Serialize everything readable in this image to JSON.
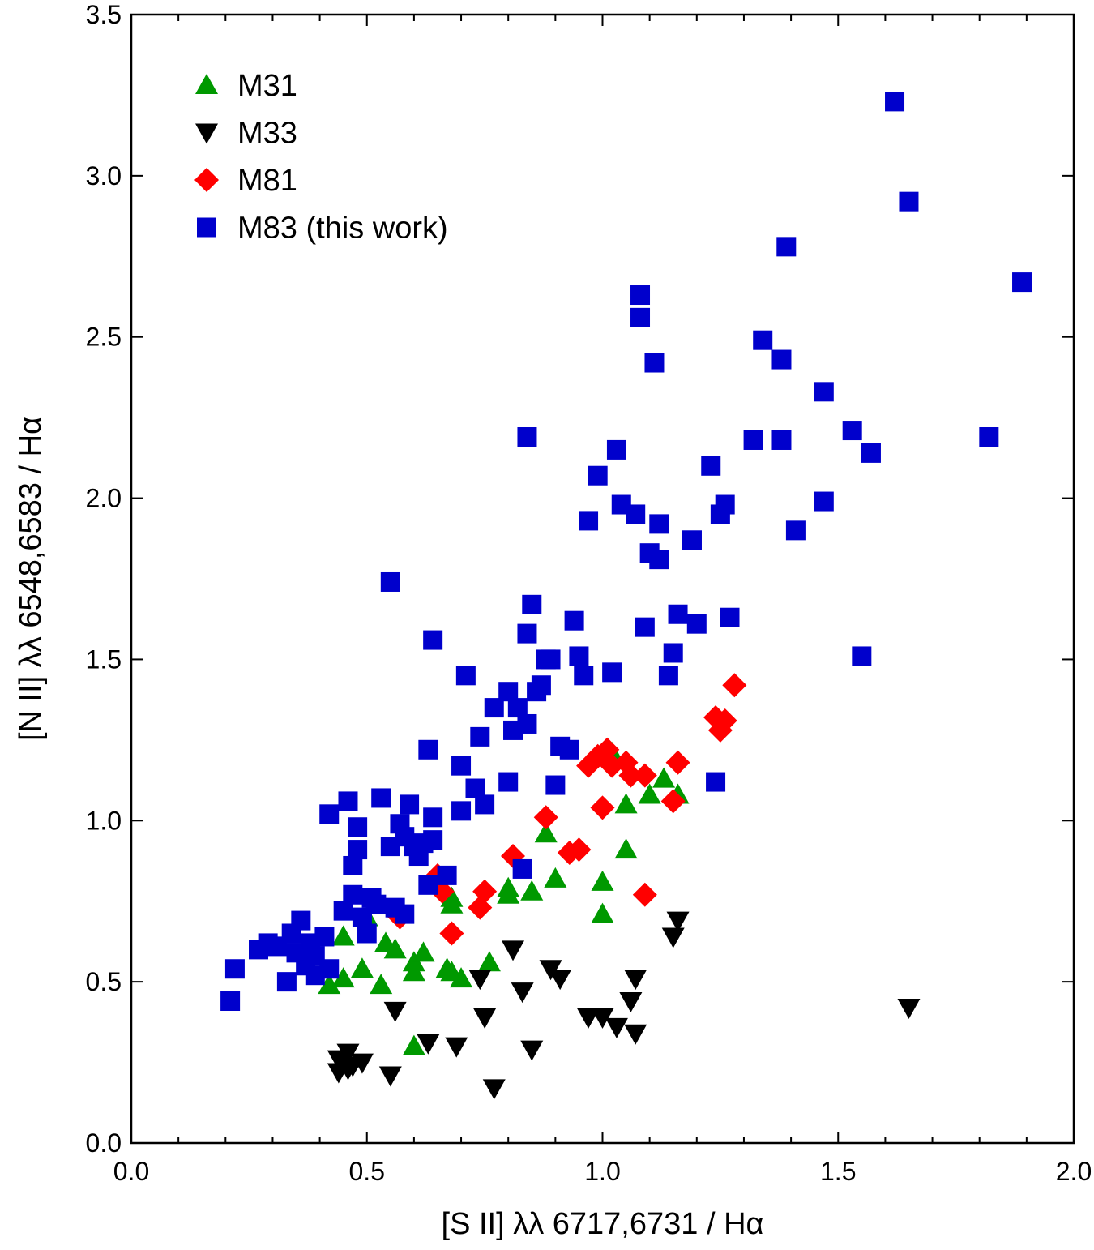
{
  "chart_data": {
    "type": "scatter",
    "title": "",
    "xlabel": "[S II] λλ 6717,6731 / Hα",
    "ylabel": "[N II] λλ 6548,6583 / Hα",
    "xlim": [
      0.0,
      2.0
    ],
    "ylim": [
      0.0,
      3.5
    ],
    "xticks": [
      0.0,
      0.5,
      1.0,
      1.5,
      2.0
    ],
    "yticks": [
      0.0,
      0.5,
      1.0,
      1.5,
      2.0,
      2.5,
      3.0,
      3.5
    ],
    "xtick_labels": [
      "0.0",
      "0.5",
      "1.0",
      "1.5",
      "2.0"
    ],
    "ytick_labels": [
      "0.0",
      "0.5",
      "1.0",
      "1.5",
      "2.0",
      "2.5",
      "3.0",
      "3.5"
    ],
    "grid": false,
    "legend_position": "top-left",
    "series": [
      {
        "name": "M31",
        "marker": "triangle-up",
        "color": "#009900",
        "points": [
          [
            0.42,
            0.49
          ],
          [
            0.45,
            0.51
          ],
          [
            0.45,
            0.64
          ],
          [
            0.49,
            0.54
          ],
          [
            0.5,
            0.7
          ],
          [
            0.53,
            0.49
          ],
          [
            0.54,
            0.62
          ],
          [
            0.56,
            0.6
          ],
          [
            0.6,
            0.3
          ],
          [
            0.6,
            0.53
          ],
          [
            0.6,
            0.56
          ],
          [
            0.62,
            0.59
          ],
          [
            0.67,
            0.54
          ],
          [
            0.68,
            0.74
          ],
          [
            0.68,
            0.76
          ],
          [
            0.68,
            0.53
          ],
          [
            0.7,
            0.51
          ],
          [
            0.76,
            0.56
          ],
          [
            0.8,
            0.77
          ],
          [
            0.8,
            0.79
          ],
          [
            0.85,
            0.78
          ],
          [
            0.88,
            0.96
          ],
          [
            0.9,
            0.82
          ],
          [
            1.0,
            0.81
          ],
          [
            1.0,
            0.71
          ],
          [
            1.02,
            1.21
          ],
          [
            1.05,
            0.91
          ],
          [
            1.05,
            1.05
          ],
          [
            1.1,
            1.08
          ],
          [
            1.13,
            1.13
          ],
          [
            1.16,
            1.08
          ]
        ]
      },
      {
        "name": "M33",
        "marker": "triangle-down",
        "color": "#000000",
        "points": [
          [
            0.44,
            0.26
          ],
          [
            0.44,
            0.22
          ],
          [
            0.46,
            0.28
          ],
          [
            0.46,
            0.23
          ],
          [
            0.47,
            0.24
          ],
          [
            0.49,
            0.25
          ],
          [
            0.55,
            0.21
          ],
          [
            0.56,
            0.41
          ],
          [
            0.63,
            0.31
          ],
          [
            0.69,
            0.3
          ],
          [
            0.74,
            0.51
          ],
          [
            0.75,
            0.39
          ],
          [
            0.77,
            0.17
          ],
          [
            0.81,
            0.6
          ],
          [
            0.83,
            0.47
          ],
          [
            0.85,
            0.29
          ],
          [
            0.89,
            0.54
          ],
          [
            0.91,
            0.51
          ],
          [
            0.97,
            0.39
          ],
          [
            1.0,
            0.39
          ],
          [
            1.03,
            0.36
          ],
          [
            1.06,
            0.44
          ],
          [
            1.07,
            0.34
          ],
          [
            1.07,
            0.51
          ],
          [
            1.15,
            0.64
          ],
          [
            1.16,
            0.69
          ],
          [
            1.65,
            0.42
          ]
        ]
      },
      {
        "name": "M81",
        "marker": "diamond",
        "color": "#ff0000",
        "points": [
          [
            0.57,
            0.7
          ],
          [
            0.65,
            0.83
          ],
          [
            0.66,
            0.78
          ],
          [
            0.68,
            0.65
          ],
          [
            0.74,
            0.73
          ],
          [
            0.75,
            0.78
          ],
          [
            0.81,
            0.89
          ],
          [
            0.88,
            1.01
          ],
          [
            0.93,
            0.9
          ],
          [
            0.95,
            0.91
          ],
          [
            0.97,
            1.17
          ],
          [
            0.99,
            1.2
          ],
          [
            1.0,
            1.04
          ],
          [
            1.01,
            1.22
          ],
          [
            1.02,
            1.17
          ],
          [
            1.05,
            1.18
          ],
          [
            1.06,
            1.14
          ],
          [
            1.09,
            1.14
          ],
          [
            1.09,
            0.77
          ],
          [
            1.15,
            1.06
          ],
          [
            1.16,
            1.18
          ],
          [
            1.24,
            1.32
          ],
          [
            1.25,
            1.28
          ],
          [
            1.26,
            1.31
          ],
          [
            1.28,
            1.42
          ]
        ]
      },
      {
        "name": "M83 (this work)",
        "marker": "square",
        "color": "#0000cc",
        "points": [
          [
            0.21,
            0.44
          ],
          [
            0.22,
            0.54
          ],
          [
            0.27,
            0.6
          ],
          [
            0.29,
            0.62
          ],
          [
            0.31,
            0.61
          ],
          [
            0.33,
            0.5
          ],
          [
            0.34,
            0.65
          ],
          [
            0.35,
            0.59
          ],
          [
            0.36,
            0.69
          ],
          [
            0.37,
            0.55
          ],
          [
            0.38,
            0.62
          ],
          [
            0.39,
            0.52
          ],
          [
            0.39,
            0.58
          ],
          [
            0.41,
            0.64
          ],
          [
            0.42,
            0.54
          ],
          [
            0.42,
            1.02
          ],
          [
            0.45,
            0.72
          ],
          [
            0.46,
            1.06
          ],
          [
            0.47,
            0.77
          ],
          [
            0.47,
            0.86
          ],
          [
            0.48,
            0.91
          ],
          [
            0.48,
            0.98
          ],
          [
            0.49,
            0.7
          ],
          [
            0.5,
            0.65
          ],
          [
            0.51,
            0.76
          ],
          [
            0.52,
            0.74
          ],
          [
            0.53,
            1.07
          ],
          [
            0.55,
            1.74
          ],
          [
            0.55,
            0.92
          ],
          [
            0.56,
            0.73
          ],
          [
            0.57,
            0.99
          ],
          [
            0.58,
            0.95
          ],
          [
            0.58,
            0.71
          ],
          [
            0.59,
            1.05
          ],
          [
            0.6,
            0.92
          ],
          [
            0.61,
            0.89
          ],
          [
            0.62,
            0.93
          ],
          [
            0.63,
            0.8
          ],
          [
            0.63,
            1.22
          ],
          [
            0.64,
            1.56
          ],
          [
            0.64,
            0.94
          ],
          [
            0.64,
            1.01
          ],
          [
            0.67,
            0.83
          ],
          [
            0.7,
            1.17
          ],
          [
            0.7,
            1.03
          ],
          [
            0.71,
            1.45
          ],
          [
            0.73,
            1.1
          ],
          [
            0.74,
            1.26
          ],
          [
            0.75,
            1.05
          ],
          [
            0.77,
            1.35
          ],
          [
            0.8,
            1.12
          ],
          [
            0.8,
            1.4
          ],
          [
            0.81,
            1.28
          ],
          [
            0.82,
            1.35
          ],
          [
            0.83,
            0.85
          ],
          [
            0.84,
            1.3
          ],
          [
            0.84,
            1.58
          ],
          [
            0.84,
            2.19
          ],
          [
            0.85,
            1.67
          ],
          [
            0.86,
            1.4
          ],
          [
            0.87,
            1.42
          ],
          [
            0.88,
            1.5
          ],
          [
            0.89,
            1.5
          ],
          [
            0.9,
            1.11
          ],
          [
            0.91,
            1.23
          ],
          [
            0.93,
            1.22
          ],
          [
            0.94,
            1.62
          ],
          [
            0.95,
            1.51
          ],
          [
            0.96,
            1.45
          ],
          [
            0.97,
            1.93
          ],
          [
            0.99,
            2.07
          ],
          [
            1.02,
            1.46
          ],
          [
            1.03,
            2.15
          ],
          [
            1.04,
            1.98
          ],
          [
            1.07,
            1.95
          ],
          [
            1.08,
            2.56
          ],
          [
            1.08,
            2.63
          ],
          [
            1.09,
            1.6
          ],
          [
            1.1,
            1.83
          ],
          [
            1.11,
            2.42
          ],
          [
            1.12,
            1.81
          ],
          [
            1.12,
            1.92
          ],
          [
            1.14,
            1.45
          ],
          [
            1.15,
            1.52
          ],
          [
            1.16,
            1.64
          ],
          [
            1.19,
            1.87
          ],
          [
            1.2,
            1.61
          ],
          [
            1.23,
            2.1
          ],
          [
            1.24,
            1.12
          ],
          [
            1.25,
            1.95
          ],
          [
            1.26,
            1.98
          ],
          [
            1.27,
            1.63
          ],
          [
            1.32,
            2.18
          ],
          [
            1.34,
            2.49
          ],
          [
            1.38,
            2.18
          ],
          [
            1.38,
            2.43
          ],
          [
            1.39,
            2.78
          ],
          [
            1.41,
            1.9
          ],
          [
            1.47,
            1.99
          ],
          [
            1.47,
            2.33
          ],
          [
            1.53,
            2.21
          ],
          [
            1.55,
            1.51
          ],
          [
            1.57,
            2.14
          ],
          [
            1.62,
            3.23
          ],
          [
            1.65,
            2.92
          ],
          [
            1.82,
            2.19
          ],
          [
            1.89,
            2.67
          ]
        ]
      }
    ]
  }
}
